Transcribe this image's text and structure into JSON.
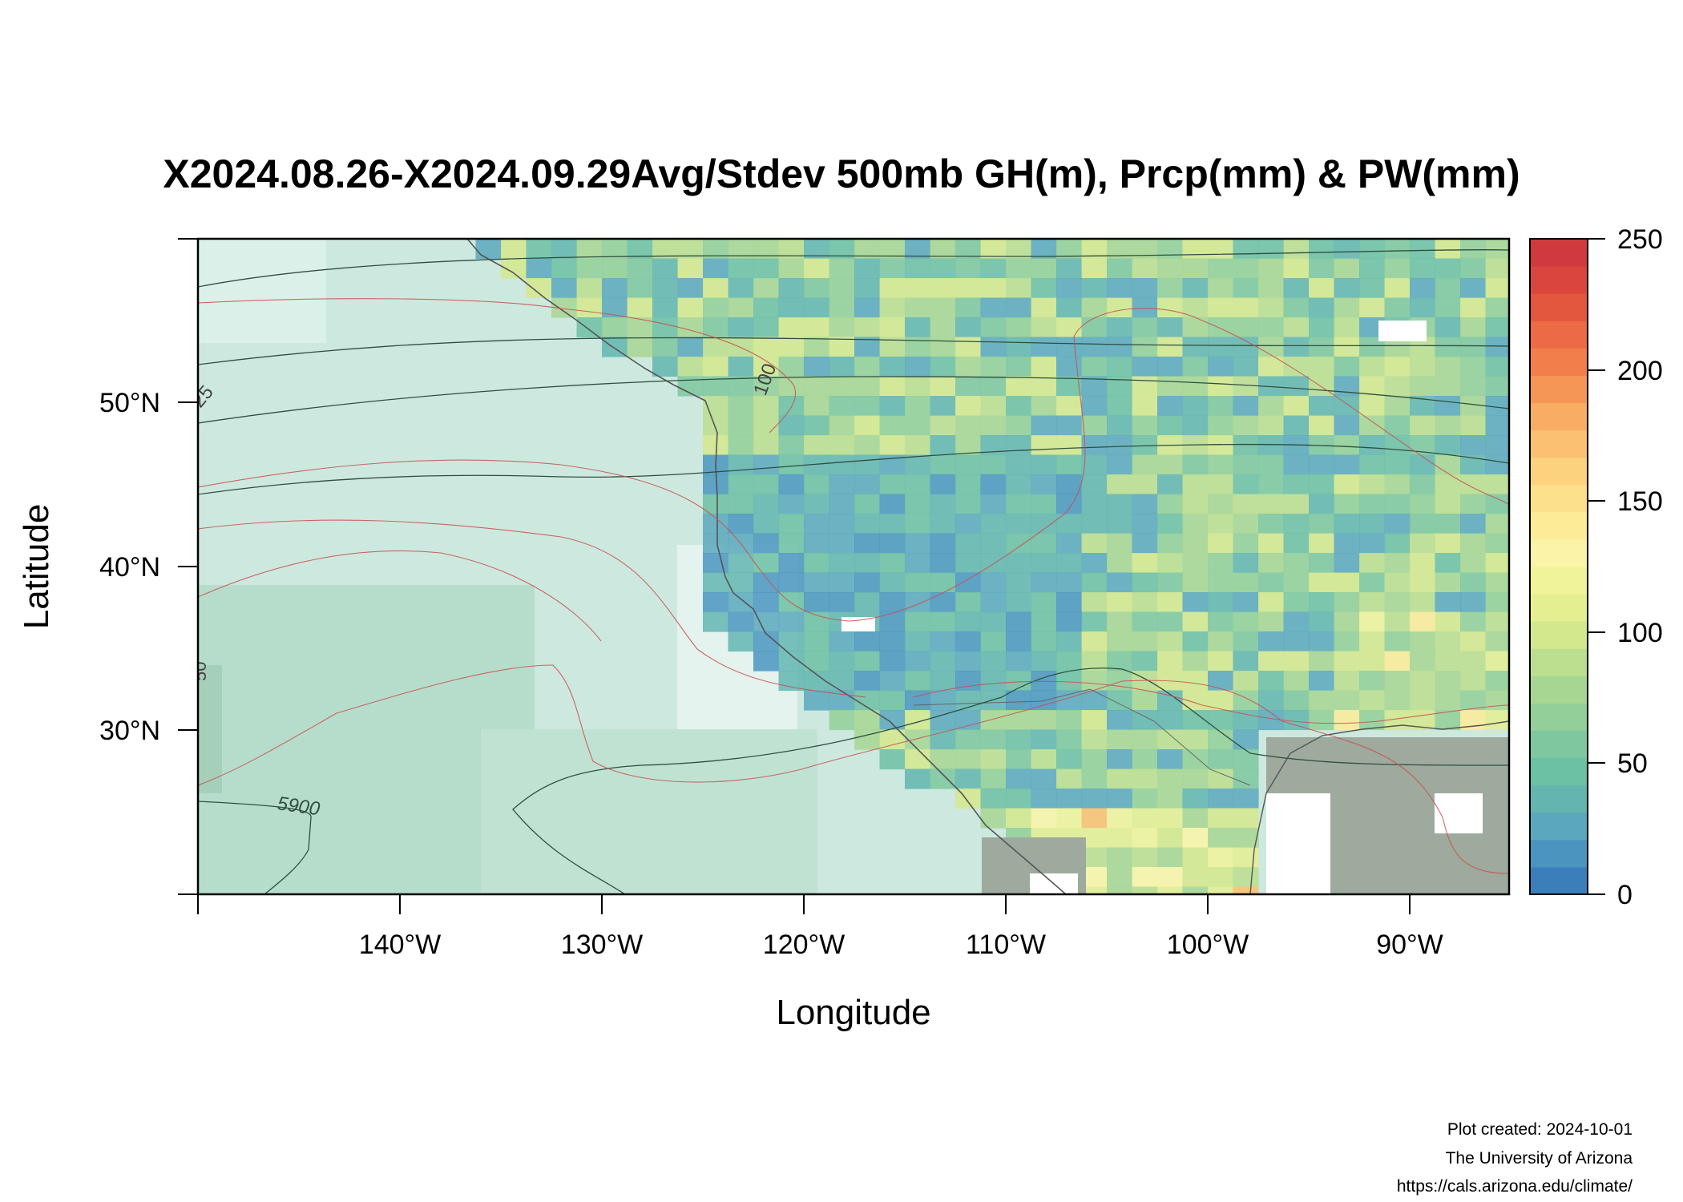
{
  "title": "X2024.08.26-X2024.09.29Avg/Stdev 500mb GH(m), Prcp(mm) & PW(mm)",
  "x_axis": {
    "label": "Longitude",
    "ticks": [
      "140°W",
      "130°W",
      "120°W",
      "110°W",
      "100°W",
      "90°W"
    ]
  },
  "y_axis": {
    "label": "Latitude",
    "ticks": [
      "50°N",
      "40°N",
      "30°N"
    ]
  },
  "colorbar": {
    "ticks": [
      "0",
      "50",
      "100",
      "150",
      "200",
      "250"
    ],
    "range": [
      0,
      250
    ],
    "colors": [
      "#3a7fba",
      "#4a95bf",
      "#5aa8bd",
      "#63b5b0",
      "#6cc0a3",
      "#7ec79f",
      "#93cf99",
      "#a7d693",
      "#bcde8f",
      "#d3e78d",
      "#e4ef92",
      "#f1f39b",
      "#fbf4a8",
      "#fdeb98",
      "#fde08b",
      "#fcd27d",
      "#fbc070",
      "#f9ad63",
      "#f69656",
      "#f27f4b",
      "#ec6a44",
      "#e4573f",
      "#da463d",
      "#d03a3f"
    ]
  },
  "map": {
    "lon_range": [
      -150,
      -85
    ],
    "lat_range": [
      20,
      60
    ],
    "contour_labels": [
      "5900",
      "100",
      "25",
      "50"
    ],
    "ocean_color": "#cde8df",
    "land_dry_color": "#9eaa9d"
  },
  "footer": {
    "created": "Plot created: 2024-10-01",
    "org": "The University of Arizona",
    "url": "https://cals.arizona.edu/climate/"
  }
}
